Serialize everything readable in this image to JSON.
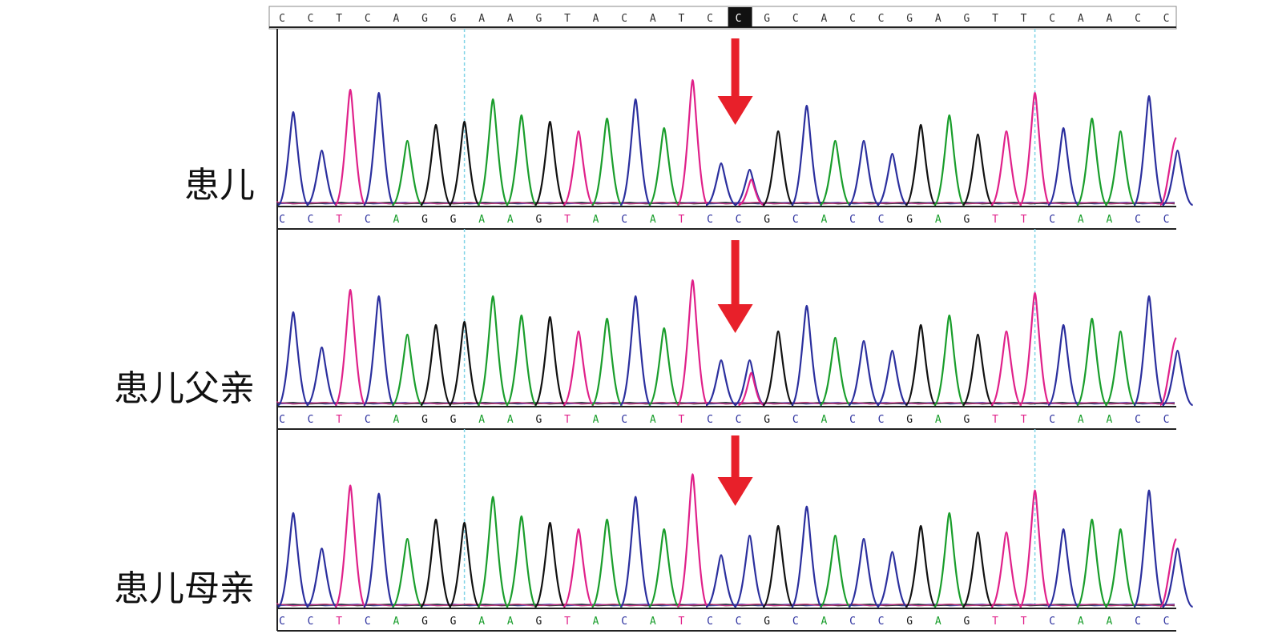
{
  "reference_sequence": "CCTCAGGAAGTACATCCGCACCGAGTTCAACC",
  "highlighted_position_index": 16,
  "base_colors": {
    "A": "#1a9e2c",
    "C": "#2b2f9e",
    "G": "#111111",
    "T": "#e0218a"
  },
  "arrow_color": "#e8202a",
  "guide_line_color": "#7fd3e6",
  "rows": [
    {
      "label": "患儿",
      "called_sequence": "CCTCAGGAAGTACATCCGCACCGAGTTCAACC",
      "zygosity_at_arrow": "heterozygous C/T"
    },
    {
      "label": "患儿父亲",
      "called_sequence": "CCTCAGGAAGTACATCCGCACCGAGTTCAACC",
      "zygosity_at_arrow": "heterozygous C/T"
    },
    {
      "label": "患儿母亲",
      "called_sequence": "CCTCAGGAAGTACATCCGCACCGAGTTCAACC",
      "zygosity_at_arrow": "homozygous C"
    }
  ]
}
